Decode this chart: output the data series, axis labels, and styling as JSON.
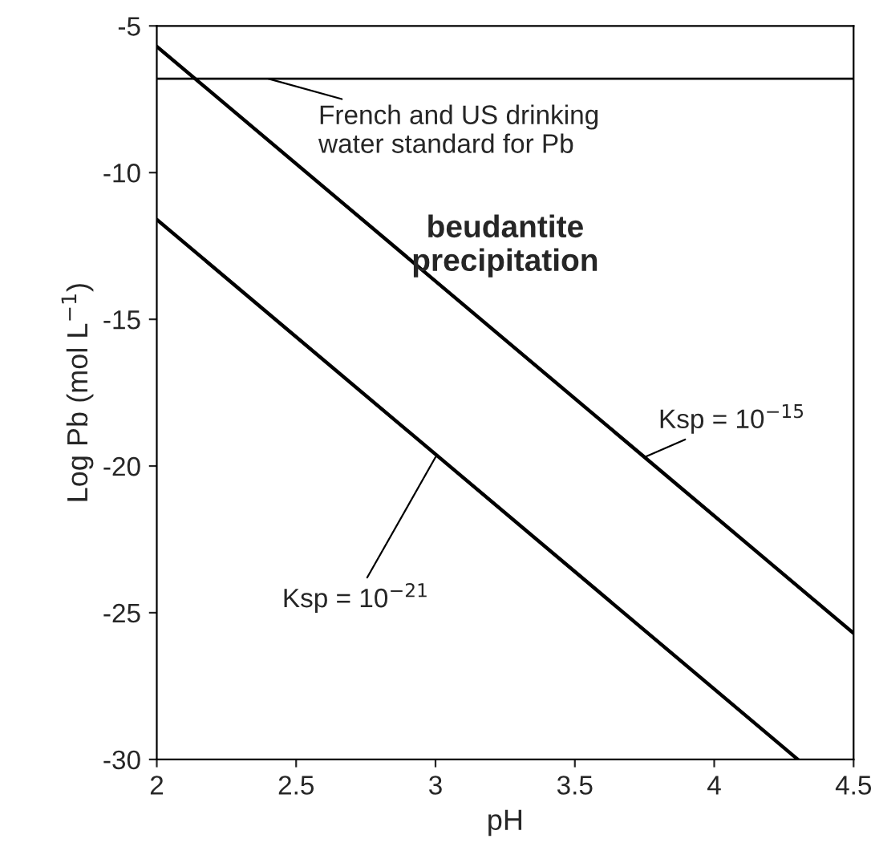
{
  "chart_data": {
    "type": "line",
    "xlabel": "pH",
    "ylabel": "Log Pb (mol L$^{−1}$)",
    "x": [
      2,
      4.5
    ],
    "series": [
      {
        "color": "#000000",
        "values": [
          -5.7,
          -25.7
        ]
      },
      {
        "color": "#000000",
        "x": [
          2,
          4.3
        ],
        "values": [
          -11.6,
          -30
        ]
      }
    ],
    "xlim": [
      2,
      4.5
    ],
    "ylim": [
      -30,
      -5
    ],
    "xticks": [
      2,
      {
        "value": 2.5,
        "label": "2.5"
      },
      3,
      {
        "value": 3.5,
        "label": "3.5"
      },
      4,
      {
        "value": 4.5,
        "label": "4.5"
      }
    ],
    "yticks": [
      -30,
      -25,
      -20,
      -15,
      -10,
      -5
    ],
    "ref_lines": [
      {
        "axis": "y",
        "value": -6.8,
        "color": "#000000"
      }
    ],
    "annotations": [
      "beudantite\nprecipitation",
      {
        "text": "French and US drinking\nwater standard for Pb",
        "x": 2.4,
        "y": -6.8
      },
      {
        "text": "Ksp = 10$^{−15}$",
        "x": 3.75,
        "y": -19.7
      },
      {
        "text": "Ksp = 10$^{−21}$",
        "x": 3.0,
        "y": -19.7
      }
    ],
    "grid": false,
    "marker": "none",
    "line_style": "solid"
  }
}
